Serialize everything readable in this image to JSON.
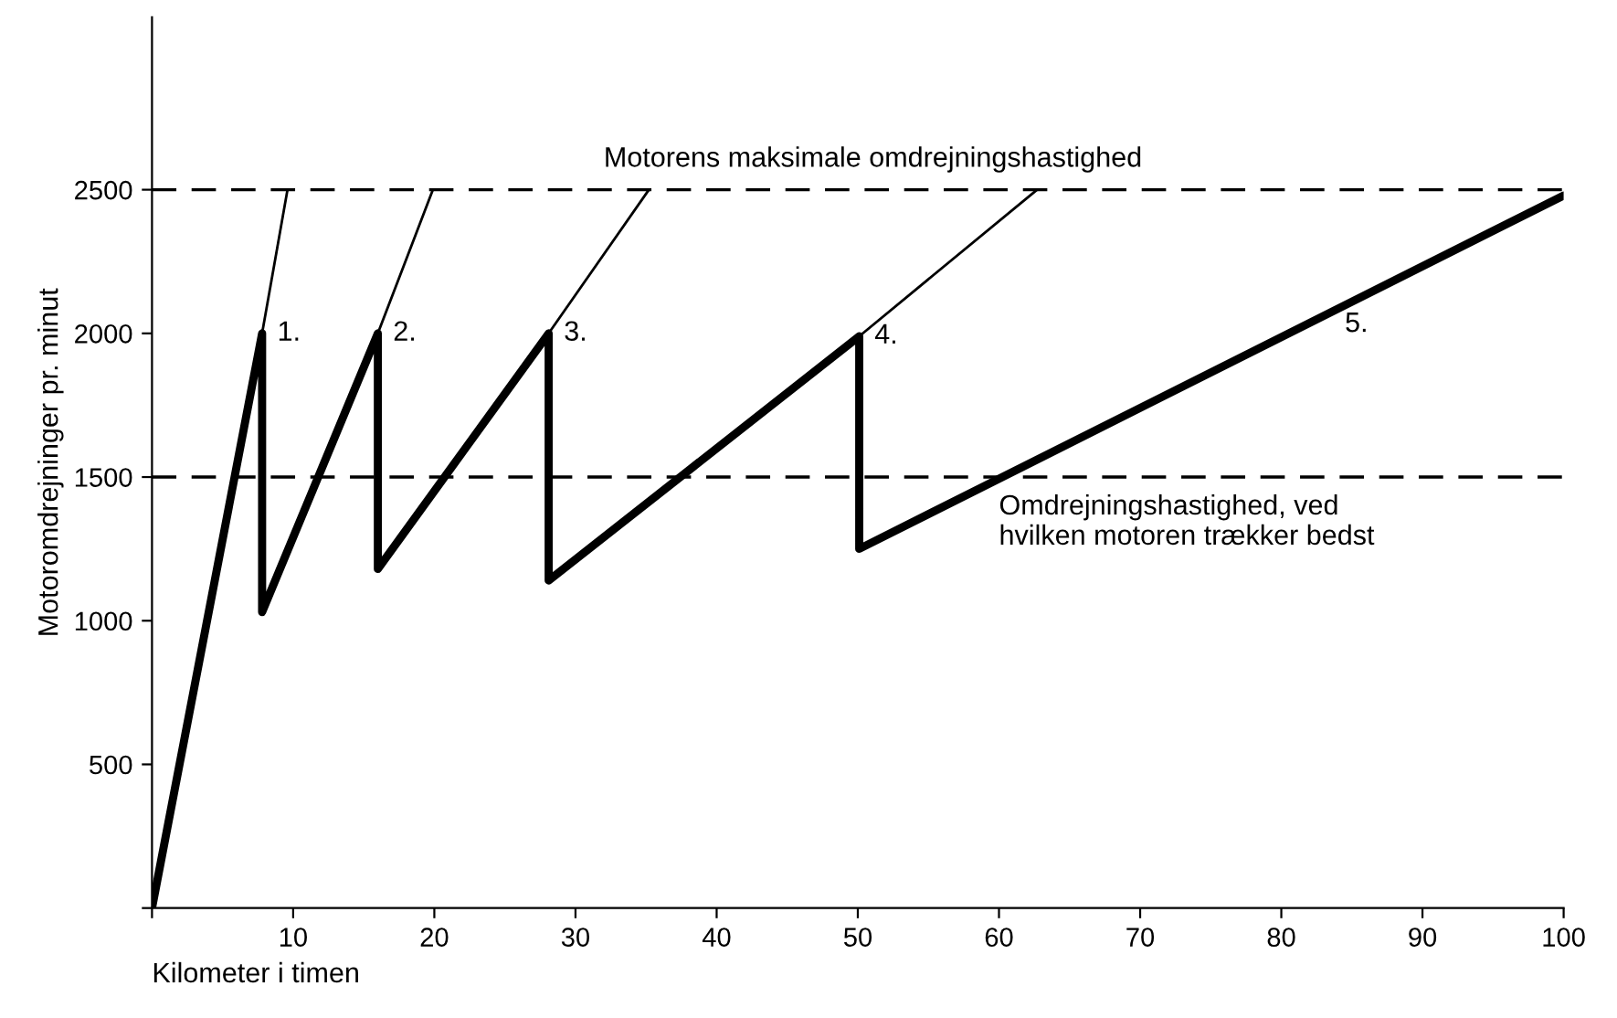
{
  "chart_data": {
    "type": "line",
    "xlabel": "Kilometer i timen",
    "ylabel": "Motoromdrejninger pr. minut",
    "series": [
      {
        "color": "#000000",
        "x": [
          0,
          7.8,
          7.8,
          16.0,
          16.0,
          28.1,
          28.1,
          50.1,
          50.1,
          100
        ],
        "values": [
          0,
          2000,
          1030,
          2000,
          1180,
          2000,
          1140,
          1990,
          1250,
          2480
        ]
      },
      {
        "color": "#000000",
        "x": [
          7.8,
          9.6
        ],
        "values": [
          2000,
          2500
        ]
      },
      {
        "color": "#000000",
        "x": [
          16.0,
          19.9
        ],
        "values": [
          2000,
          2500
        ]
      },
      {
        "color": "#000000",
        "x": [
          28.1,
          35.2
        ],
        "values": [
          2000,
          2500
        ]
      },
      {
        "color": "#000000",
        "x": [
          50.1,
          62.7
        ],
        "values": [
          1990,
          2500
        ]
      }
    ],
    "xlim": [
      0,
      100
    ],
    "ylim": [
      0,
      3100
    ],
    "xticks": [
      {
        "value": 0,
        "label": null
      },
      10,
      20,
      30,
      40,
      50,
      60,
      70,
      80,
      90,
      100
    ],
    "yticks": [
      {
        "value": 0,
        "label": null
      },
      500,
      1000,
      1500,
      2000,
      2500
    ],
    "ref_lines": [
      {
        "axis": "y",
        "value": 2500,
        "label": "Motorens maksimale omdrejningshastighed",
        "color": "#000000",
        "line_style": "dashed"
      },
      {
        "axis": "y",
        "value": 1500,
        "label": "Omdrejningshastighed, ved\nhvilken motoren trækker bedst",
        "color": "#000000",
        "line_style": "dashed"
      }
    ],
    "annotations": [
      {
        "text": "1.",
        "x": 7.8,
        "y": 2000
      },
      {
        "text": "2.",
        "x": 16.0,
        "y": 2000
      },
      {
        "text": "3.",
        "x": 28.1,
        "y": 2000
      },
      {
        "text": "4.",
        "x": 50.1,
        "y": 1990
      },
      "5."
    ],
    "grid": false,
    "line_style": "solid",
    "marker": "none"
  }
}
